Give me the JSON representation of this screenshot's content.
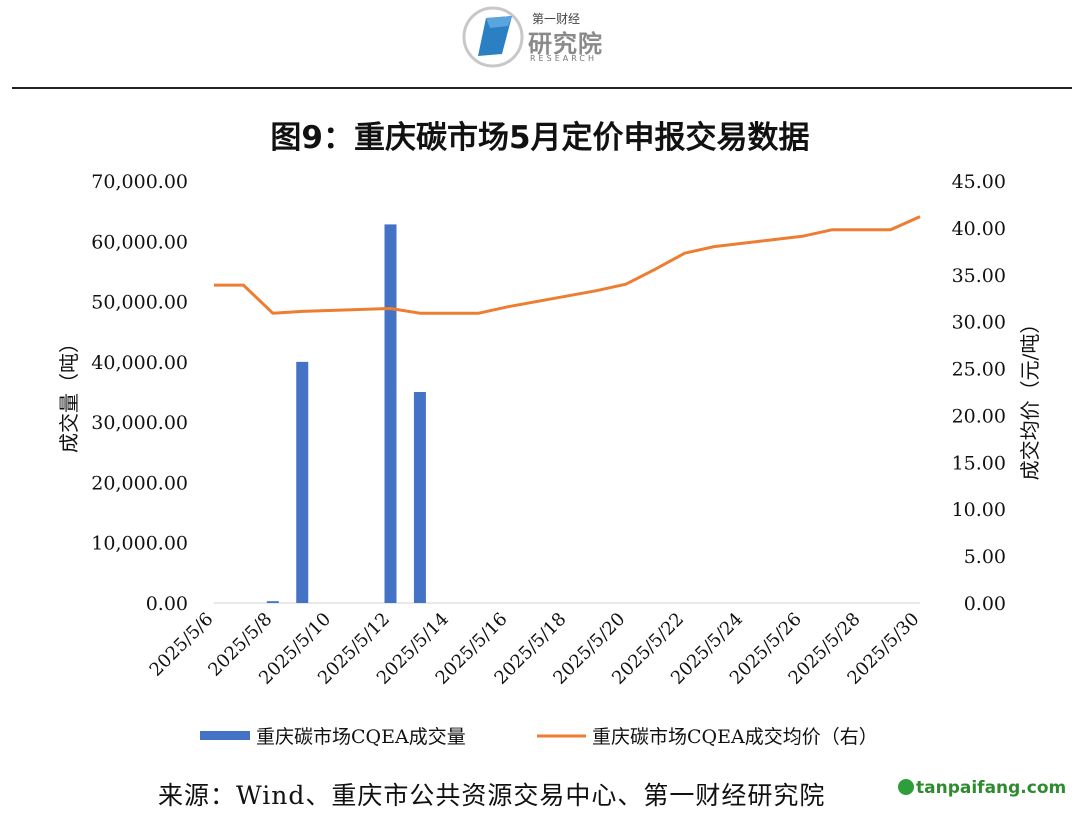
{
  "header": {
    "logo_small": "第一财经",
    "logo_big": "研究院",
    "logo_en": "RESEARCH"
  },
  "chart_data": {
    "type": "bar+line",
    "title": "图9：重庆碳市场5月定价申报交易数据",
    "ylabel_left": "成交量（吨）",
    "ylabel_right": "成交均价（元/吨）",
    "ylim_left": [
      0,
      70000
    ],
    "ylim_right": [
      0,
      45
    ],
    "left_ticks": [
      "0.00",
      "10,000.00",
      "20,000.00",
      "30,000.00",
      "40,000.00",
      "50,000.00",
      "60,000.00",
      "70,000.00"
    ],
    "right_ticks": [
      "0.00",
      "5.00",
      "10.00",
      "15.00",
      "20.00",
      "25.00",
      "30.00",
      "35.00",
      "40.00",
      "45.00"
    ],
    "x_tick_labels": [
      "2025/5/6",
      "2025/5/8",
      "2025/5/10",
      "2025/5/12",
      "2025/5/14",
      "2025/5/16",
      "2025/5/18",
      "2025/5/20",
      "2025/5/22",
      "2025/5/24",
      "2025/5/26",
      "2025/5/28",
      "2025/5/30"
    ],
    "days": [
      6,
      7,
      8,
      9,
      12,
      13,
      14,
      15,
      16,
      19,
      20,
      21,
      22,
      23,
      26,
      27,
      28,
      29,
      30
    ],
    "series": [
      {
        "name": "重庆碳市场CQEA成交量",
        "type": "bar",
        "axis": "left",
        "color": "#4472c4",
        "values": [
          0,
          0,
          300,
          40000,
          62800,
          35000,
          0,
          0,
          0,
          0,
          0,
          0,
          0,
          0,
          0,
          0,
          0,
          0,
          0
        ]
      },
      {
        "name": "重庆碳市场CQEA成交均价（右）",
        "type": "line",
        "axis": "right",
        "color": "#ed7d31",
        "values": [
          33.9,
          33.9,
          30.9,
          31.1,
          31.4,
          30.9,
          30.9,
          30.9,
          31.6,
          33.3,
          34.0,
          35.6,
          37.3,
          38.0,
          39.1,
          39.8,
          39.8,
          39.8,
          41.2
        ]
      }
    ],
    "legend_position": "bottom",
    "grid": false
  },
  "source": "来源：Wind、重庆市公共资源交易中心、第一财经研究院",
  "watermark": "tanpaifang.com"
}
